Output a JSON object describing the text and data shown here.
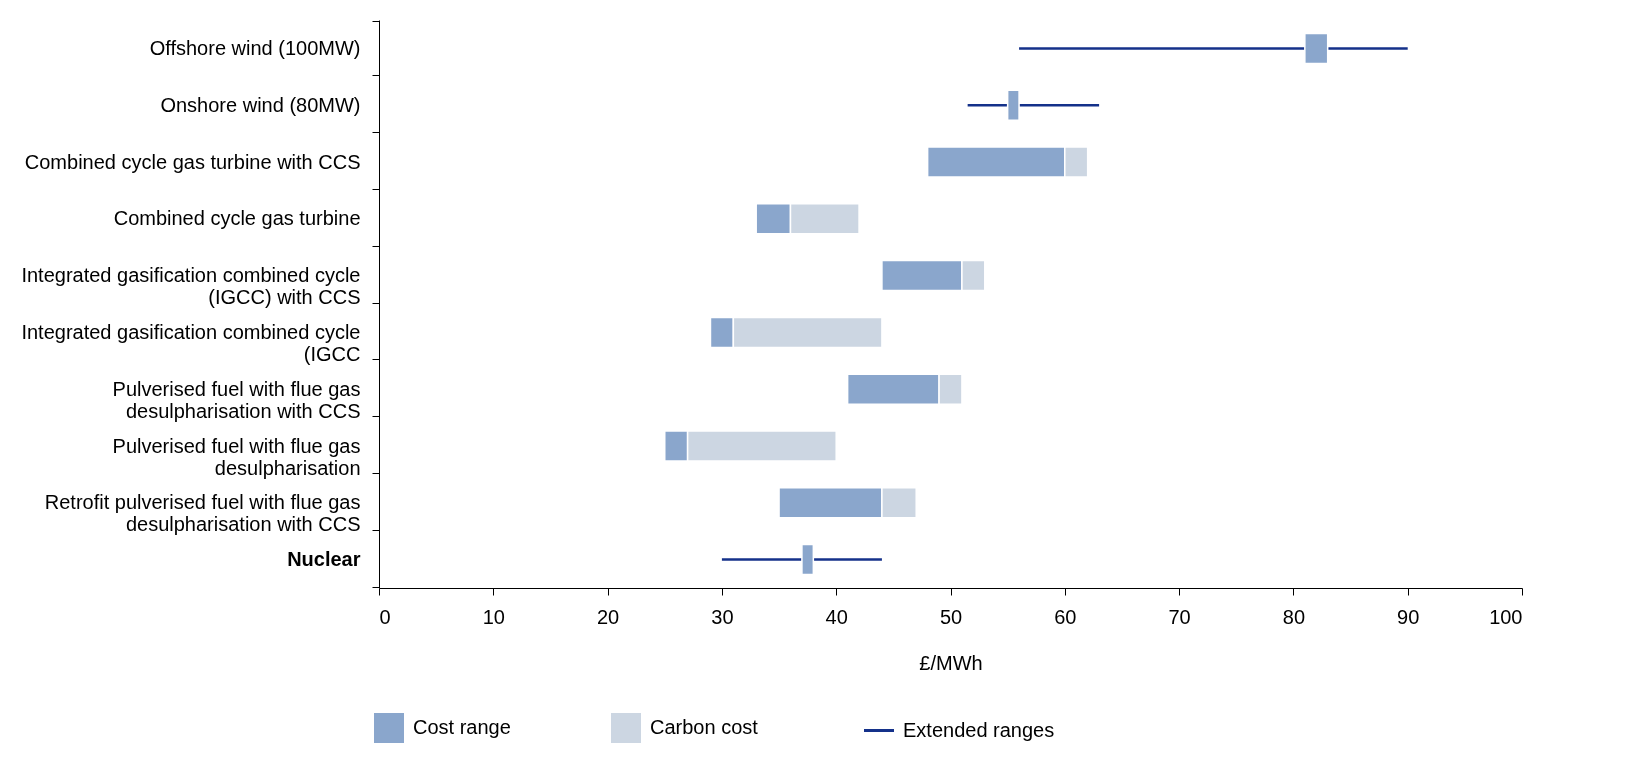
{
  "chart_data": {
    "type": "bar",
    "orientation": "horizontal",
    "categories": [
      "Offshore wind  (100MW)",
      "Onshore wind  (80MW)",
      "Combined cycle gas turbine with CCS",
      "Combined cycle gas turbine",
      "Integrated gasification combined cycle (IGCC) with CCS",
      "Integrated gasification combined cycle (IGCC",
      "Pulverised fuel with flue gas desulpharisation with CCS",
      "Pulverised fuel with flue gas desulpharisation",
      "Retrofit pulverised fuel with flue gas desulpharisation with CCS",
      "Nuclear"
    ],
    "series": [
      {
        "name": "Cost range",
        "type": "bar",
        "color": "#8aa6cc",
        "base": [
          81,
          55,
          48,
          33,
          44,
          29,
          41,
          25,
          35,
          37
        ],
        "values": [
          2,
          1,
          12,
          3,
          7,
          2,
          8,
          2,
          9,
          1
        ],
        "errors": [
          [
            56,
            90
          ],
          [
            51.5,
            63
          ],
          null,
          null,
          null,
          null,
          null,
          null,
          null,
          [
            30,
            44
          ]
        ]
      },
      {
        "name": "Carbon cost",
        "type": "bar",
        "color": "#ccd6e2",
        "base": [
          null,
          null,
          60,
          36,
          51,
          31,
          49,
          27,
          44,
          null
        ],
        "values": [
          null,
          null,
          2,
          6,
          2,
          13,
          2,
          13,
          3,
          null
        ]
      },
      {
        "name": "Extended ranges",
        "type": "line",
        "color": "#14318a",
        "values": [
          null,
          null,
          null,
          null,
          null,
          null,
          null,
          null,
          null,
          null
        ]
      }
    ],
    "xlim": [
      0,
      100
    ],
    "xticks": [
      0,
      10,
      20,
      30,
      40,
      50,
      60,
      70,
      80,
      90,
      100
    ],
    "xlabel": "£/MWh",
    "legend": "bottom",
    "grid": false
  }
}
